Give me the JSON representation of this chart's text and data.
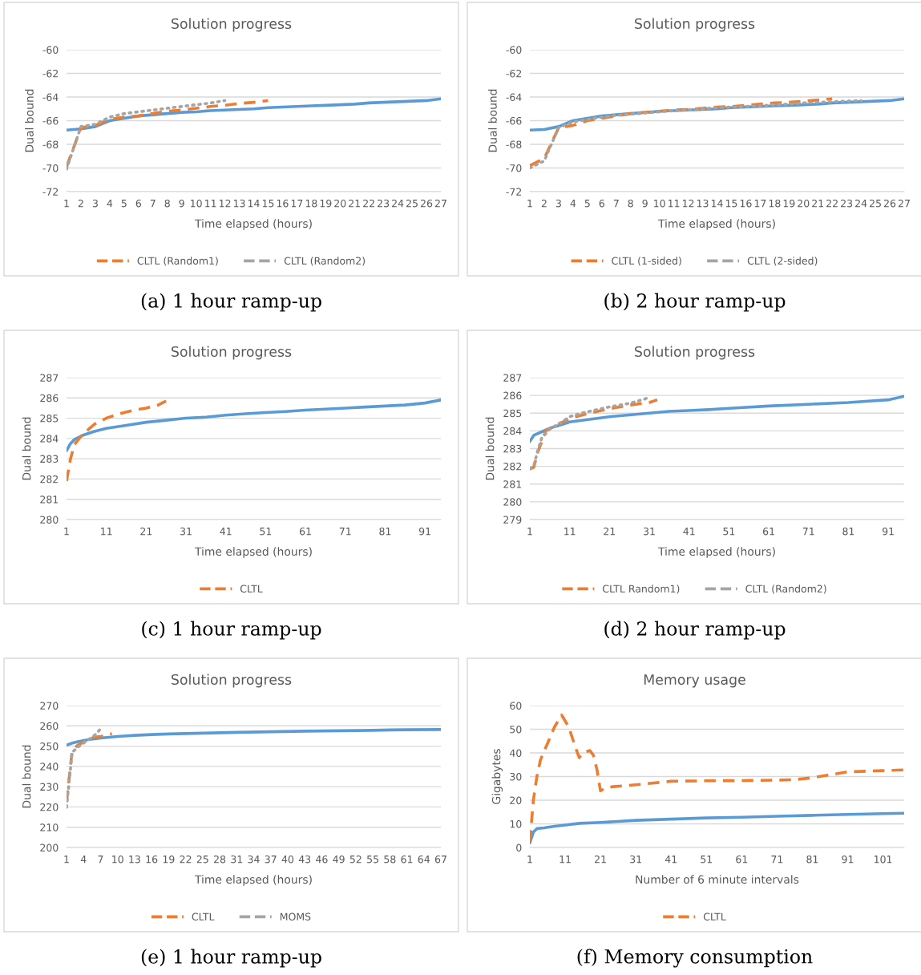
{
  "chart_data": [
    {
      "type": "line",
      "title": "Solution progress",
      "xlabel": "Time elapsed (hours)",
      "ylabel": "Dual bound",
      "annotations": [
        "(a) 1 hour ramp-up"
      ],
      "xlim": [
        1,
        27
      ],
      "xticks": [
        1,
        2,
        3,
        4,
        5,
        6,
        7,
        8,
        9,
        10,
        11,
        12,
        13,
        14,
        15,
        16,
        17,
        18,
        19,
        20,
        21,
        22,
        23,
        24,
        25,
        26,
        27
      ],
      "ylim": [
        -72,
        -60
      ],
      "yticks": [
        -72,
        -70,
        -68,
        -66,
        -64,
        -62,
        -60
      ],
      "grid": "y",
      "legend": "bottom",
      "series": [
        {
          "color": "#5b9bd5",
          "line_style": "solid",
          "x": [
            1,
            2,
            3,
            4,
            5,
            6,
            7,
            8,
            9,
            10,
            11,
            12,
            13,
            14,
            15,
            16,
            17,
            18,
            19,
            20,
            21,
            22,
            23,
            24,
            25,
            26,
            27
          ],
          "values": [
            -66.8,
            -66.7,
            -66.5,
            -66.0,
            -65.8,
            -65.6,
            -65.5,
            -65.4,
            -65.3,
            -65.25,
            -65.15,
            -65.1,
            -65.05,
            -65.0,
            -64.9,
            -64.85,
            -64.8,
            -64.75,
            -64.7,
            -64.65,
            -64.6,
            -64.5,
            -64.45,
            -64.4,
            -64.35,
            -64.3,
            -64.15
          ]
        },
        {
          "name": "CLTL (Random1)",
          "color": "#ed7d31",
          "line_style": "dashed",
          "x": [
            1,
            2,
            3,
            4,
            5,
            6,
            7,
            8,
            9,
            10,
            11,
            12,
            13,
            14,
            15
          ],
          "values": [
            -69.9,
            -66.6,
            -66.4,
            -65.9,
            -65.7,
            -65.6,
            -65.4,
            -65.2,
            -65.1,
            -64.95,
            -64.8,
            -64.7,
            -64.55,
            -64.45,
            -64.3
          ]
        },
        {
          "name": "CLTL (Random2)",
          "color": "#a5a5a5",
          "line_style": "dotted",
          "x": [
            1,
            2,
            3,
            4,
            5,
            6,
            7,
            8,
            9,
            10,
            11,
            12
          ],
          "values": [
            -70.1,
            -66.5,
            -66.3,
            -65.7,
            -65.4,
            -65.25,
            -65.1,
            -64.95,
            -64.8,
            -64.65,
            -64.5,
            -64.3
          ]
        }
      ]
    },
    {
      "type": "line",
      "title": "Solution progress",
      "xlabel": "Time elapsed (hours)",
      "ylabel": "Dual bound",
      "annotations": [
        "(b) 2 hour ramp-up"
      ],
      "xlim": [
        1,
        27
      ],
      "xticks": [
        1,
        2,
        3,
        4,
        5,
        6,
        7,
        8,
        9,
        10,
        11,
        12,
        13,
        14,
        15,
        16,
        17,
        18,
        19,
        20,
        21,
        22,
        23,
        24,
        25,
        26,
        27
      ],
      "ylim": [
        -72,
        -60
      ],
      "yticks": [
        -72,
        -70,
        -68,
        -66,
        -64,
        -62,
        -60
      ],
      "grid": "y",
      "legend": "bottom",
      "series": [
        {
          "color": "#5b9bd5",
          "line_style": "solid",
          "x": [
            1,
            2,
            3,
            4,
            5,
            6,
            7,
            8,
            9,
            10,
            11,
            12,
            13,
            14,
            15,
            16,
            17,
            18,
            19,
            20,
            21,
            22,
            23,
            24,
            25,
            26,
            27
          ],
          "values": [
            -66.8,
            -66.75,
            -66.5,
            -66.0,
            -65.8,
            -65.6,
            -65.5,
            -65.4,
            -65.3,
            -65.2,
            -65.15,
            -65.1,
            -65.05,
            -65.0,
            -64.9,
            -64.85,
            -64.8,
            -64.75,
            -64.7,
            -64.65,
            -64.6,
            -64.5,
            -64.45,
            -64.4,
            -64.35,
            -64.3,
            -64.15
          ]
        },
        {
          "name": "CLTL (1-sided)",
          "color": "#ed7d31",
          "line_style": "dashed",
          "x": [
            1,
            2,
            3,
            4,
            5,
            6,
            7,
            8,
            9,
            10,
            11,
            12,
            13,
            14,
            15,
            16,
            17,
            18,
            19,
            20,
            21,
            22
          ],
          "values": [
            -69.8,
            -69.2,
            -66.6,
            -66.4,
            -66.0,
            -65.8,
            -65.6,
            -65.4,
            -65.3,
            -65.2,
            -65.1,
            -65.05,
            -64.95,
            -64.85,
            -64.8,
            -64.7,
            -64.6,
            -64.5,
            -64.45,
            -64.35,
            -64.25,
            -64.15
          ]
        },
        {
          "name": "CLTL (2-sided)",
          "color": "#a5a5a5",
          "line_style": "dotted",
          "x": [
            1,
            2,
            3,
            4,
            5,
            6,
            7,
            8,
            9,
            10,
            11,
            12,
            13,
            14,
            15,
            16,
            17,
            18,
            19,
            20,
            21,
            22,
            23,
            24
          ],
          "values": [
            -70.0,
            -69.4,
            -66.6,
            -66.1,
            -65.9,
            -65.7,
            -65.55,
            -65.45,
            -65.35,
            -65.25,
            -65.15,
            -65.1,
            -65.0,
            -64.9,
            -64.85,
            -64.8,
            -64.75,
            -64.65,
            -64.6,
            -64.5,
            -64.45,
            -64.4,
            -64.35,
            -64.3
          ]
        }
      ]
    },
    {
      "type": "line",
      "title": "Solution progress",
      "xlabel": "Time elapsed (hours)",
      "ylabel": "Dual bound",
      "annotations": [
        "(c) 1 hour ramp-up"
      ],
      "xlim": [
        1,
        95
      ],
      "xticks": [
        1,
        11,
        21,
        31,
        41,
        51,
        61,
        71,
        81,
        91
      ],
      "ylim": [
        280,
        287
      ],
      "yticks": [
        280,
        281,
        282,
        283,
        284,
        285,
        286,
        287
      ],
      "grid": "y",
      "legend": "bottom",
      "series": [
        {
          "color": "#5b9bd5",
          "line_style": "solid",
          "x": [
            1,
            2,
            3,
            5,
            8,
            11,
            16,
            21,
            26,
            31,
            36,
            41,
            46,
            51,
            56,
            61,
            66,
            71,
            76,
            81,
            86,
            91,
            95
          ],
          "values": [
            283.4,
            283.75,
            283.95,
            284.15,
            284.35,
            284.5,
            284.65,
            284.8,
            284.9,
            285.0,
            285.05,
            285.15,
            285.22,
            285.28,
            285.33,
            285.4,
            285.45,
            285.5,
            285.55,
            285.6,
            285.65,
            285.75,
            285.9
          ]
        },
        {
          "name": "CLTL",
          "color": "#ed7d31",
          "line_style": "dashed",
          "x": [
            1,
            2,
            3,
            5,
            8,
            11,
            14,
            18,
            21,
            24,
            25,
            26
          ],
          "values": [
            281.9,
            283.0,
            283.7,
            284.2,
            284.7,
            285.0,
            285.2,
            285.4,
            285.5,
            285.65,
            285.75,
            285.85
          ]
        }
      ]
    },
    {
      "type": "line",
      "title": "Solution progress",
      "xlabel": "Time elapsed (hours)",
      "ylabel": "Dual bound",
      "annotations": [
        "(d) 2 hour ramp-up"
      ],
      "xlim": [
        1,
        95
      ],
      "xticks": [
        1,
        11,
        21,
        31,
        41,
        51,
        61,
        71,
        81,
        91
      ],
      "ylim": [
        279,
        287
      ],
      "yticks": [
        279,
        280,
        281,
        282,
        283,
        284,
        285,
        286,
        287
      ],
      "grid": "y",
      "legend": "bottom",
      "series": [
        {
          "color": "#5b9bd5",
          "line_style": "solid",
          "x": [
            1,
            2,
            4,
            6,
            9,
            11,
            16,
            21,
            26,
            31,
            36,
            41,
            46,
            51,
            61,
            71,
            81,
            91,
            95
          ],
          "values": [
            283.4,
            283.75,
            283.95,
            284.15,
            284.35,
            284.5,
            284.65,
            284.8,
            284.9,
            285.0,
            285.1,
            285.15,
            285.2,
            285.27,
            285.4,
            285.5,
            285.6,
            285.75,
            285.95
          ]
        },
        {
          "name": "CLTL Random1)",
          "color": "#ed7d31",
          "line_style": "dashed",
          "x": [
            1,
            2,
            3,
            4,
            5,
            8,
            11,
            16,
            21,
            26,
            31,
            33
          ],
          "values": [
            281.85,
            281.95,
            282.8,
            283.4,
            284.0,
            284.35,
            284.7,
            285.0,
            285.25,
            285.45,
            285.6,
            285.75
          ]
        },
        {
          "name": "CLTL (Random2)",
          "color": "#a5a5a5",
          "line_style": "dotted",
          "x": [
            1,
            2,
            3,
            4,
            6,
            9,
            11,
            14,
            17,
            21,
            26,
            30,
            31
          ],
          "values": [
            281.85,
            282.05,
            282.9,
            283.6,
            284.1,
            284.5,
            284.8,
            285.0,
            285.15,
            285.35,
            285.55,
            285.8,
            285.95
          ]
        }
      ]
    },
    {
      "type": "line",
      "title": "Solution progress",
      "xlabel": "Time elapsed (hours)",
      "ylabel": "Dual bound",
      "annotations": [
        "(e) 1 hour ramp-up"
      ],
      "xlim": [
        1,
        67
      ],
      "xticks": [
        1,
        4,
        7,
        10,
        13,
        16,
        19,
        22,
        25,
        28,
        31,
        34,
        37,
        40,
        43,
        46,
        49,
        52,
        55,
        58,
        61,
        64,
        67
      ],
      "ylim": [
        200,
        270
      ],
      "yticks": [
        200,
        210,
        220,
        230,
        240,
        250,
        260,
        270
      ],
      "grid": "y",
      "legend": "bottom",
      "series": [
        {
          "color": "#5b9bd5",
          "line_style": "solid",
          "x": [
            1,
            2,
            3,
            5,
            7,
            10,
            13,
            16,
            19,
            25,
            31,
            37,
            43,
            49,
            55,
            58,
            61,
            67
          ],
          "values": [
            250.5,
            251.5,
            252.2,
            253.3,
            254.0,
            254.8,
            255.3,
            255.7,
            256.0,
            256.4,
            256.8,
            257.1,
            257.4,
            257.6,
            257.8,
            258.0,
            258.1,
            258.2
          ]
        },
        {
          "name": "CLTL",
          "color": "#ed7d31",
          "line_style": "dashed",
          "x": [
            1,
            2,
            3,
            4,
            5,
            6,
            7,
            8,
            9
          ],
          "values": [
            222.5,
            248,
            250.5,
            252,
            253.5,
            254.5,
            254.8,
            255.2,
            256.2
          ]
        },
        {
          "name": "MOMS",
          "color": "#a5a5a5",
          "line_style": "dotted",
          "x": [
            1,
            2,
            3,
            4,
            5,
            6,
            7
          ],
          "values": [
            219.8,
            247,
            249.5,
            251.5,
            253.5,
            255.5,
            258.5
          ]
        }
      ]
    },
    {
      "type": "line",
      "title": "Memory usage",
      "xlabel": "Number of 6 minute intervals",
      "ylabel": "Gigabytes",
      "annotations": [
        "(f) Memory consumption"
      ],
      "xlim": [
        1,
        107
      ],
      "xticks": [
        1,
        11,
        21,
        31,
        41,
        51,
        61,
        71,
        81,
        91,
        101
      ],
      "ylim": [
        0,
        60
      ],
      "yticks": [
        0,
        10,
        20,
        30,
        40,
        50,
        60
      ],
      "grid": "y",
      "legend": "bottom",
      "series": [
        {
          "color": "#5b9bd5",
          "line_style": "solid",
          "x": [
            1,
            2,
            3,
            5,
            8,
            11,
            15,
            21,
            31,
            41,
            51,
            61,
            71,
            81,
            91,
            101,
            107
          ],
          "values": [
            2,
            6.5,
            8,
            8.3,
            9,
            9.5,
            10.2,
            10.6,
            11.5,
            12,
            12.5,
            12.8,
            13.2,
            13.6,
            14,
            14.3,
            14.5
          ]
        },
        {
          "name": "CLTL",
          "color": "#ed7d31",
          "line_style": "dashed",
          "x": [
            1,
            2,
            3,
            4,
            6,
            8,
            10,
            12,
            14,
            15,
            16,
            18,
            19,
            20,
            21,
            23,
            31,
            41,
            51,
            61,
            71,
            76,
            81,
            85,
            91,
            101,
            107
          ],
          "values": [
            2.5,
            20,
            30,
            37,
            44,
            51,
            56,
            51,
            42,
            38,
            40,
            41,
            39,
            33,
            24,
            25.5,
            26.5,
            28,
            28.2,
            28.3,
            28.5,
            28.7,
            29.5,
            30.5,
            32,
            32.5,
            32.8
          ]
        }
      ]
    }
  ]
}
